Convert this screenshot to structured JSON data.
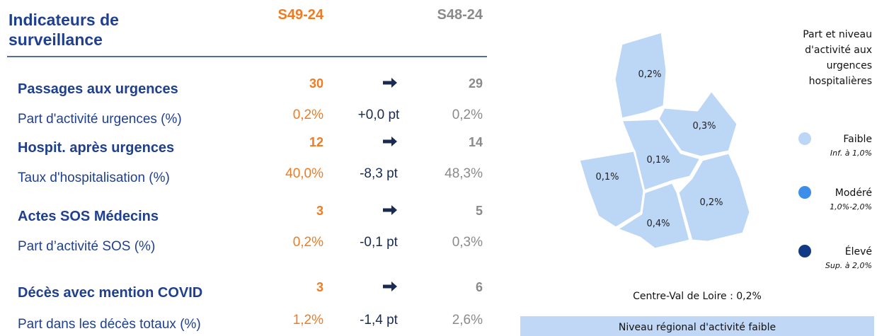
{
  "header": {
    "title": [
      "Indicateurs de",
      "surveillance"
    ],
    "columns": [
      "S49-24",
      "S48-24"
    ]
  },
  "rows": [
    {
      "label": "Passages aux urgences",
      "current": "30",
      "previous": "29",
      "main": true
    },
    {
      "label": "Part d'activité urgences (%)",
      "current": "0,2%",
      "change": "+0,0 pt",
      "previous": "0,2%",
      "main": false
    },
    {
      "label": "Hospit. après urgences",
      "current": "12",
      "previous": "14",
      "main": true
    },
    {
      "label": "Taux d'hospitalisation (%)",
      "current": "40,0%",
      "change": "-8,3 pt",
      "previous": "48,3%",
      "main": false
    },
    {
      "label": "Actes SOS Médecins",
      "current": "3",
      "previous": "5",
      "main": true
    },
    {
      "label": "Part d’activité SOS (%)",
      "current": "0,2%",
      "change": "-0,1 pt",
      "previous": "0,3%",
      "main": false
    },
    {
      "label": "Décès avec mention COVID",
      "current": "3",
      "previous": "6",
      "main": true
    },
    {
      "label": "Part dans les décès totaux (%)",
      "current": "1,2%",
      "change": "-1,4 pt",
      "previous": "2,6%",
      "main": false
    }
  ],
  "map": {
    "regions": [
      {
        "label": "0,2%",
        "color": "#bcd6f6"
      },
      {
        "label": "0,3%",
        "color": "#bcd6f6"
      },
      {
        "label": "0,1%",
        "color": "#bcd6f6"
      },
      {
        "label": "0,1%",
        "color": "#bcd6f6"
      },
      {
        "label": "0,4%",
        "color": "#bcd6f6"
      },
      {
        "label": "0,2%",
        "color": "#bcd6f6"
      }
    ],
    "regional": "Centre-Val de Loire : 0,2%",
    "banner": "Niveau régional d'activité faible"
  },
  "legend": {
    "title": [
      "Part et niveau",
      "d'activité aux",
      "urgences",
      "hospitalières"
    ],
    "items": [
      {
        "name": "Faible",
        "range": "Inf. à 1,0%",
        "color": "#bcd6f6"
      },
      {
        "name": "Modéré",
        "range": "1,0%-2,0%",
        "color": "#3d8ee8"
      },
      {
        "name": "Élevé",
        "range": "Sup. à 2,0%",
        "color": "#123a84"
      }
    ]
  }
}
